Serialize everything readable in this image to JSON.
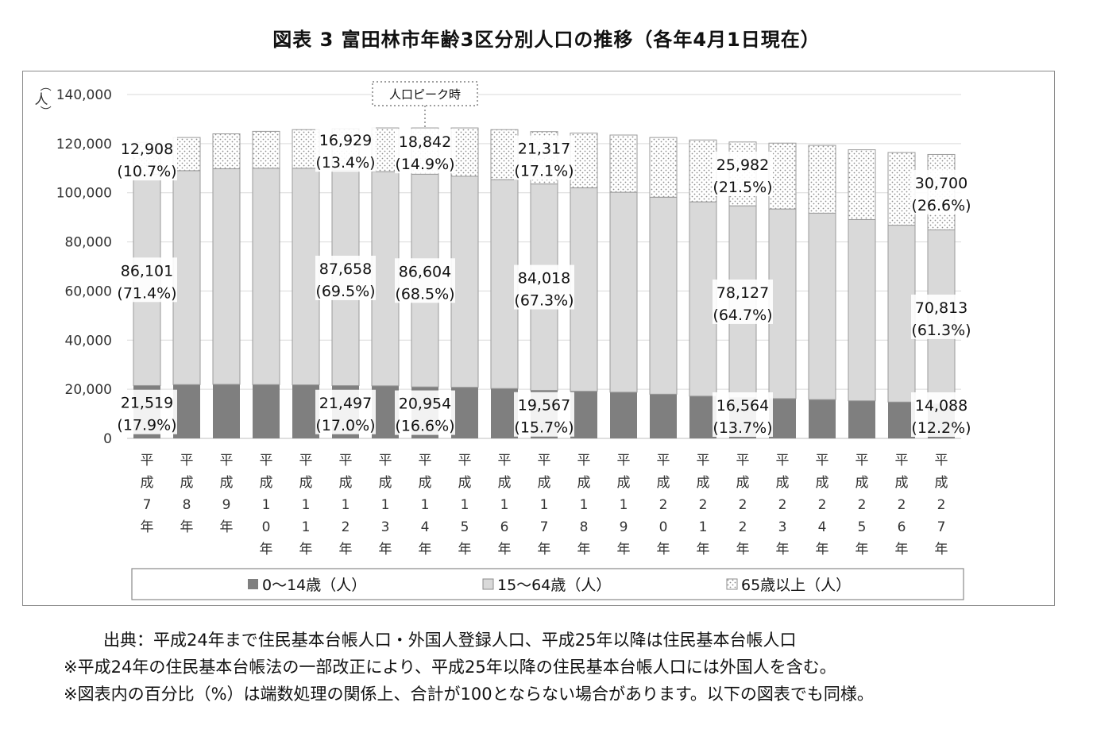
{
  "title": "図表 3  富田林市年齢3区分別人口の推移（各年4月1日現在）",
  "y_unit_label": "（人）",
  "peak_annotation": "人口ピーク時",
  "source_text": "出典：平成24年まで住民基本台帳人口・外国人登録人口、平成25年以降は住民基本台帳人口",
  "notes": [
    "※平成24年の住民基本台帳法の一部改正により、平成25年以降の住民基本台帳人口には外国人を含む。",
    "※図表内の百分比（%）は端数処理の関係上、合計が100とならない場合があります。以下の図表でも同様。"
  ],
  "colors": {
    "young": "#7f7f7f",
    "working": "#d9d9d9",
    "elderly_bg": "#ffffff",
    "elderly_dot": "#8c8c8c",
    "grid": "#d9d9d9",
    "axis": "#bfbfbf"
  },
  "chart_data": {
    "type": "bar",
    "stacked": true,
    "categories": [
      "平成7年",
      "平成8年",
      "平成9年",
      "平成10年",
      "平成11年",
      "平成12年",
      "平成13年",
      "平成14年",
      "平成15年",
      "平成16年",
      "平成17年",
      "平成18年",
      "平成19年",
      "平成20年",
      "平成21年",
      "平成22年",
      "平成23年",
      "平成24年",
      "平成25年",
      "平成26年",
      "平成27年"
    ],
    "x_tick_labels": [
      [
        "平",
        "成",
        "7",
        "年"
      ],
      [
        "平",
        "成",
        "8",
        "年"
      ],
      [
        "平",
        "成",
        "9",
        "年"
      ],
      [
        "平",
        "成",
        "1",
        "0",
        "年"
      ],
      [
        "平",
        "成",
        "1",
        "1",
        "年"
      ],
      [
        "平",
        "成",
        "1",
        "2",
        "年"
      ],
      [
        "平",
        "成",
        "1",
        "3",
        "年"
      ],
      [
        "平",
        "成",
        "1",
        "4",
        "年"
      ],
      [
        "平",
        "成",
        "1",
        "5",
        "年"
      ],
      [
        "平",
        "成",
        "1",
        "6",
        "年"
      ],
      [
        "平",
        "成",
        "1",
        "7",
        "年"
      ],
      [
        "平",
        "成",
        "1",
        "8",
        "年"
      ],
      [
        "平",
        "成",
        "1",
        "9",
        "年"
      ],
      [
        "平",
        "成",
        "2",
        "0",
        "年"
      ],
      [
        "平",
        "成",
        "2",
        "1",
        "年"
      ],
      [
        "平",
        "成",
        "2",
        "2",
        "年"
      ],
      [
        "平",
        "成",
        "2",
        "3",
        "年"
      ],
      [
        "平",
        "成",
        "2",
        "4",
        "年"
      ],
      [
        "平",
        "成",
        "2",
        "5",
        "年"
      ],
      [
        "平",
        "成",
        "2",
        "6",
        "年"
      ],
      [
        "平",
        "成",
        "2",
        "7",
        "年"
      ]
    ],
    "series": [
      {
        "name": "0～14歳（人）",
        "key": "young",
        "values": [
          21519,
          21900,
          22000,
          21900,
          21800,
          21497,
          21400,
          20954,
          20800,
          20300,
          19567,
          19200,
          18800,
          18000,
          17200,
          16564,
          16200,
          15800,
          15300,
          14800,
          14088
        ]
      },
      {
        "name": "15～64歳（人）",
        "key": "working",
        "values": [
          86101,
          87100,
          87800,
          88100,
          88200,
          87658,
          87200,
          86604,
          85900,
          85000,
          84018,
          82800,
          81400,
          80200,
          79100,
          78127,
          77200,
          75900,
          73800,
          72000,
          70813
        ]
      },
      {
        "name": "65歳以上（人）",
        "key": "elderly",
        "values": [
          12908,
          13500,
          14200,
          15000,
          15700,
          16929,
          17800,
          18842,
          19700,
          20400,
          21317,
          22300,
          23300,
          24300,
          25200,
          25982,
          26800,
          27600,
          28400,
          29600,
          30700
        ]
      }
    ],
    "data_labels": [
      {
        "index": 0,
        "series": "young",
        "value": "21,519",
        "pct": "(17.9%)"
      },
      {
        "index": 0,
        "series": "working",
        "value": "86,101",
        "pct": "(71.4%)"
      },
      {
        "index": 0,
        "series": "elderly",
        "value": "12,908",
        "pct": "(10.7%)"
      },
      {
        "index": 5,
        "series": "young",
        "value": "21,497",
        "pct": "(17.0%)"
      },
      {
        "index": 5,
        "series": "working",
        "value": "87,658",
        "pct": "(69.5%)"
      },
      {
        "index": 5,
        "series": "elderly",
        "value": "16,929",
        "pct": "(13.4%)"
      },
      {
        "index": 7,
        "series": "young",
        "value": "20,954",
        "pct": "(16.6%)"
      },
      {
        "index": 7,
        "series": "working",
        "value": "86,604",
        "pct": "(68.5%)"
      },
      {
        "index": 7,
        "series": "elderly",
        "value": "18,842",
        "pct": "(14.9%)"
      },
      {
        "index": 10,
        "series": "young",
        "value": "19,567",
        "pct": "(15.7%)"
      },
      {
        "index": 10,
        "series": "working",
        "value": "84,018",
        "pct": "(67.3%)"
      },
      {
        "index": 10,
        "series": "elderly",
        "value": "21,317",
        "pct": "(17.1%)"
      },
      {
        "index": 15,
        "series": "young",
        "value": "16,564",
        "pct": "(13.7%)"
      },
      {
        "index": 15,
        "series": "working",
        "value": "78,127",
        "pct": "(64.7%)"
      },
      {
        "index": 15,
        "series": "elderly",
        "value": "25,982",
        "pct": "(21.5%)"
      },
      {
        "index": 20,
        "series": "young",
        "value": "14,088",
        "pct": "(12.2%)"
      },
      {
        "index": 20,
        "series": "working",
        "value": "70,813",
        "pct": "(61.3%)"
      },
      {
        "index": 20,
        "series": "elderly",
        "value": "30,700",
        "pct": "(26.6%)"
      }
    ],
    "peak_index": 7,
    "ylim": [
      0,
      140000
    ],
    "yticks": [
      0,
      20000,
      40000,
      60000,
      80000,
      100000,
      120000,
      140000
    ],
    "ytick_labels": [
      "0",
      "20,000",
      "40,000",
      "60,000",
      "80,000",
      "100,000",
      "120,000",
      "140,000"
    ],
    "grid": true,
    "legend_position": "bottom"
  }
}
